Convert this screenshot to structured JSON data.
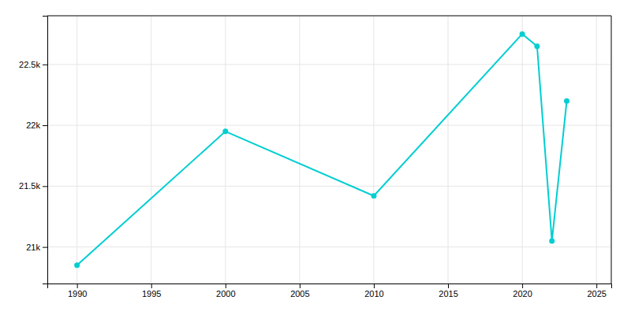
{
  "chart_data": {
    "type": "line",
    "x": [
      1990,
      2000,
      2010,
      2020,
      2021,
      2022,
      2023
    ],
    "values": [
      20850,
      21950,
      21420,
      22750,
      22650,
      21050,
      22200
    ],
    "color": "#00CED1",
    "marker": "circle",
    "xlim": [
      1988,
      2026
    ],
    "ylim": [
      20700,
      22900
    ],
    "xticks": [
      1990,
      1995,
      2000,
      2005,
      2010,
      2015,
      2020,
      2025
    ],
    "yticks": [
      {
        "value": 21000,
        "label": "21k"
      },
      {
        "value": 21500,
        "label": "21.5k"
      },
      {
        "value": 22000,
        "label": "22k"
      },
      {
        "value": 22500,
        "label": "22.5k"
      }
    ],
    "grid": true
  }
}
